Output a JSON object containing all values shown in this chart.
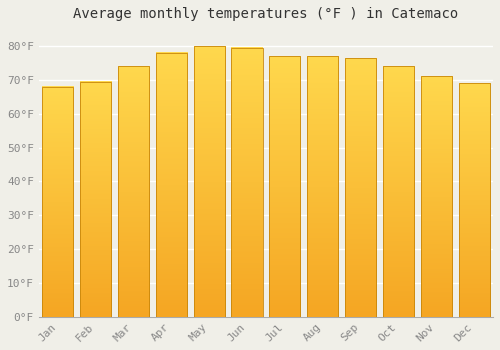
{
  "title": "Average monthly temperatures (°F ) in Catemaco",
  "months": [
    "Jan",
    "Feb",
    "Mar",
    "Apr",
    "May",
    "Jun",
    "Jul",
    "Aug",
    "Sep",
    "Oct",
    "Nov",
    "Dec"
  ],
  "values": [
    68,
    69.5,
    74,
    78,
    80,
    79.5,
    77,
    77,
    76.5,
    74,
    71,
    69
  ],
  "bar_color_bottom": "#F5A623",
  "bar_color_top": "#FFD84D",
  "bar_edge_color": "#C8860A",
  "ylim": [
    0,
    85
  ],
  "yticks": [
    0,
    10,
    20,
    30,
    40,
    50,
    60,
    70,
    80
  ],
  "ytick_labels": [
    "0°F",
    "10°F",
    "20°F",
    "30°F",
    "40°F",
    "50°F",
    "60°F",
    "70°F",
    "80°F"
  ],
  "background_color": "#f0efe8",
  "grid_color": "#ffffff",
  "title_fontsize": 10,
  "tick_fontsize": 8,
  "font_family": "monospace",
  "bar_width": 0.82
}
